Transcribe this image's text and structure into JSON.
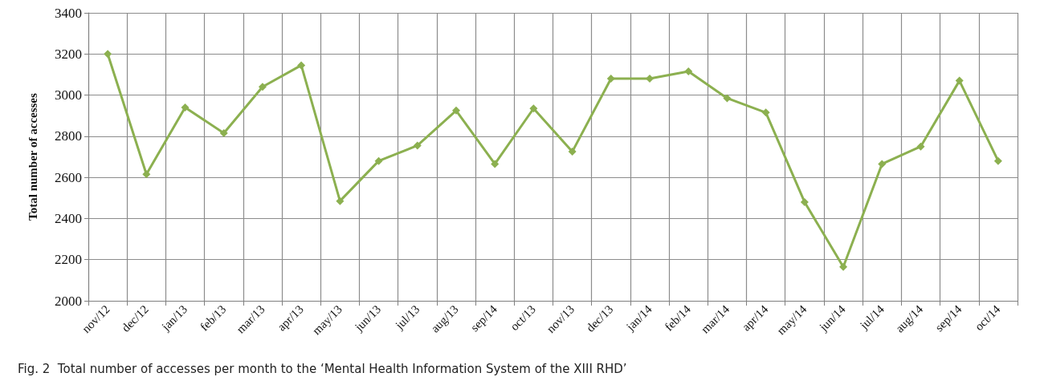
{
  "chart_data": {
    "type": "line",
    "ylabel": "Total number of accesses",
    "categories": [
      "nov/12",
      "dec/12",
      "jan/13",
      "feb/13",
      "mar/13",
      "apr/13",
      "may/13",
      "jun/13",
      "jul/13",
      "aug/13",
      "sep/14",
      "oct/13",
      "nov/13",
      "dec/13",
      "jan/14",
      "feb/14",
      "mar/14",
      "apr/14",
      "may/14",
      "jun/14",
      "jul/14",
      "aug/14",
      "sep/14",
      "oct/14"
    ],
    "series": [
      {
        "color": "#8cb050",
        "values": [
          3200,
          2615,
          2940,
          2815,
          3040,
          3145,
          2485,
          2680,
          2755,
          2925,
          2665,
          2935,
          2725,
          3080,
          3080,
          3115,
          2985,
          2915,
          2480,
          2165,
          2665,
          2750,
          3070,
          2680
        ]
      }
    ],
    "ylim": [
      2000,
      3400
    ],
    "yticks": [
      2000,
      2200,
      2400,
      2600,
      2800,
      3000,
      3200,
      3400
    ],
    "grid": true,
    "marker": "diamond",
    "line_style": "solid",
    "annotations": [
      "Fig. 2  Total number of accesses per month to the ‘Mental Health Information System of the XIII RHD’"
    ]
  }
}
